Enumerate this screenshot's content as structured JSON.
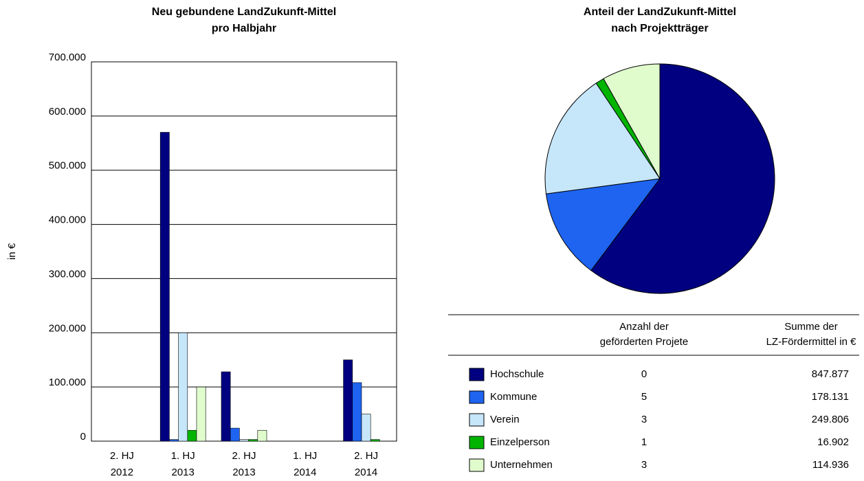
{
  "chart_data": [
    {
      "type": "bar",
      "title": "Neu gebundene LandZukunft-Mittel\npro Halbjahr",
      "ylabel": "in €",
      "categories": [
        "2. HJ\n2012",
        "1. HJ\n2013",
        "2. HJ\n2013",
        "1. HJ\n2014",
        "2. HJ\n2014"
      ],
      "series": [
        {
          "color": "#000080",
          "values": [
            0,
            570000,
            128000,
            0,
            150000
          ]
        },
        {
          "color": "#1e64f0",
          "values": [
            0,
            3000,
            24000,
            0,
            108000
          ]
        },
        {
          "color": "#c6e6fa",
          "values": [
            0,
            200000,
            3000,
            0,
            50000
          ]
        },
        {
          "color": "#00b400",
          "values": [
            0,
            20000,
            3000,
            0,
            3000
          ]
        },
        {
          "color": "#e0fccd",
          "values": [
            0,
            100000,
            20000,
            0,
            0
          ]
        }
      ],
      "ylim": [
        0,
        700000
      ],
      "yticks": [
        0,
        {
          "value": 100000,
          "label": "100.000"
        },
        {
          "value": 200000,
          "label": "200.000"
        },
        {
          "value": 300000,
          "label": "300.000"
        },
        {
          "value": 400000,
          "label": "400.000"
        },
        {
          "value": 500000,
          "label": "500.000"
        },
        {
          "value": 600000,
          "label": "600.000"
        },
        {
          "value": 700000,
          "label": "700.000"
        }
      ],
      "grid": true
    },
    {
      "type": "pie",
      "title": "Anteil der LandZukunft-Mittel\nnach Projektträger",
      "categories": [
        "Hochschule",
        "Kommune",
        "Verein",
        "Einzelperson",
        "Unternehmen"
      ],
      "values": [
        847877,
        178131,
        249806,
        16902,
        114936
      ],
      "value_labels": [
        "847.877",
        "178.131",
        "249.806",
        "16.902",
        "114.936"
      ],
      "colors": [
        "#000080",
        "#1e64f0",
        "#c6e6fa",
        "#00b400",
        "#e0fccd"
      ]
    }
  ],
  "table": {
    "headers": [
      "Anzahl der\ngeförderten Projete",
      "Summe der\nLZ-Fördermittel in €"
    ],
    "counts": [
      0,
      5,
      3,
      1,
      3
    ]
  }
}
